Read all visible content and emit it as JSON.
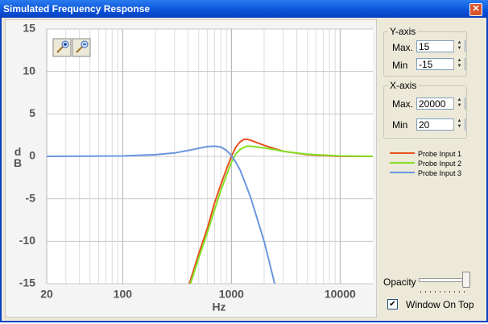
{
  "window": {
    "title": "Simulated Frequency Response"
  },
  "chart_data": {
    "type": "line",
    "x_label": "Hz",
    "y_label": "dB",
    "x": [
      20,
      50,
      100,
      200,
      300,
      400,
      410,
      420,
      500,
      600,
      700,
      800,
      900,
      1000,
      1100,
      1200,
      1300,
      1400,
      1500,
      2000,
      2500,
      3000,
      5000,
      10000,
      20000
    ],
    "series": [
      {
        "name": "Probe Input 1",
        "color": "#e8501e",
        "values": [
          null,
          null,
          null,
          null,
          null,
          null,
          -15,
          -14.6,
          -11.5,
          -8.5,
          -5.5,
          -3.3,
          -1.5,
          0,
          1.1,
          1.7,
          2.0,
          2.0,
          1.9,
          1.3,
          0.9,
          0.6,
          0.2,
          0,
          0
        ]
      },
      {
        "name": "Probe Input 2",
        "color": "#84e024",
        "values": [
          null,
          null,
          null,
          null,
          null,
          null,
          null,
          -15,
          -12,
          -9,
          -6.3,
          -4,
          -2.2,
          -0.7,
          0.3,
          0.8,
          1.05,
          1.2,
          1.2,
          1.0,
          0.8,
          0.6,
          0.25,
          0.05,
          0
        ]
      },
      {
        "name": "Probe Input 3",
        "color": "#6a96e0",
        "values": [
          0,
          0.02,
          0.05,
          0.2,
          0.4,
          0.7,
          0.72,
          0.74,
          0.95,
          1.15,
          1.2,
          1.1,
          0.7,
          0.1,
          -0.7,
          -1.6,
          -2.7,
          -3.8,
          -4.8,
          -10,
          -15,
          null,
          null,
          null,
          null
        ]
      }
    ],
    "xlim": [
      20,
      20000
    ],
    "xticks": [
      20,
      100,
      1000,
      10000
    ],
    "ylim": [
      -15,
      15
    ],
    "yticks": [
      -15,
      -10,
      -5,
      0,
      5,
      10,
      15
    ],
    "log_x": true,
    "grid": true
  },
  "controls": {
    "y_axis": {
      "title": "Y-axis",
      "max_label": "Max.",
      "max": "15",
      "min_label": "Min",
      "min": "-15"
    },
    "x_axis": {
      "title": "X-axis",
      "max_label": "Max.",
      "max": "20000",
      "min_label": "Min",
      "min": "20"
    },
    "opacity_label": "Opacity",
    "window_on_top": "Window On Top"
  }
}
